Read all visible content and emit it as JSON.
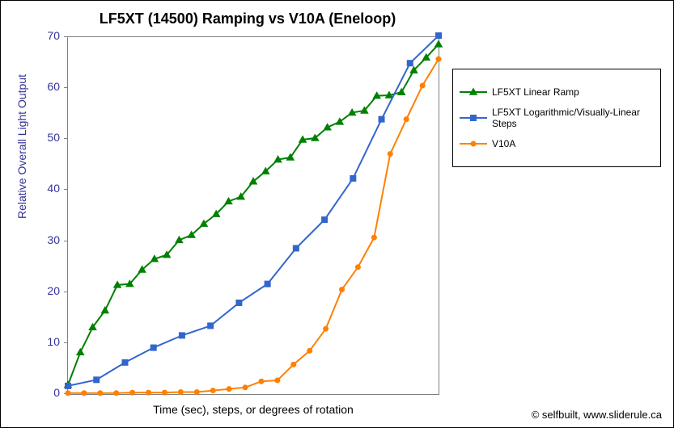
{
  "chart": {
    "type": "line",
    "title": "LF5XT (14500) Ramping vs V10A (Eneloop)",
    "title_fontsize": 18,
    "xlabel": "Time (sec), steps, or degrees of rotation",
    "ylabel": "Relative Overall Light Output",
    "label_fontsize": 14,
    "ylabel_color": "#333399",
    "ylim": [
      0,
      70
    ],
    "ytick_step": 10,
    "yticks": [
      0,
      10,
      20,
      30,
      40,
      50,
      60,
      70
    ],
    "background_color": "#ffffff",
    "grid_color": "#808080",
    "plot_border_color": "#808080",
    "x_index_max": 30,
    "attribution": "© selfbuilt, www.sliderule.ca",
    "legend": {
      "position": "right",
      "border_color": "#000000",
      "items": [
        {
          "label": "LF5XT Linear Ramp",
          "series_key": "lf5xt_linear"
        },
        {
          "label": "LF5XT Logarithmic/Visually-Linear Steps",
          "series_key": "lf5xt_log"
        },
        {
          "label": "V10A",
          "series_key": "v10a"
        }
      ]
    },
    "series": {
      "lf5xt_linear": {
        "label": "LF5XT Linear Ramp",
        "color": "#008000",
        "marker": "triangle",
        "marker_size": 8,
        "line_width": 2,
        "y": [
          1.8,
          8.2,
          13.1,
          16.4,
          21.4,
          21.6,
          24.4,
          26.5,
          27.3,
          30.2,
          31.2,
          33.4,
          35.3,
          37.8,
          38.7,
          41.7,
          43.7,
          46.0,
          46.4,
          49.9,
          50.2,
          52.3,
          53.4,
          55.2,
          55.6,
          58.5,
          58.6,
          59.2,
          63.5,
          66.0,
          68.6
        ]
      },
      "lf5xt_log": {
        "label": "LF5XT Logarithmic/Visually-Linear Steps",
        "color": "#3366cc",
        "marker": "square",
        "marker_size": 7,
        "line_width": 2,
        "y": [
          1.6,
          2.8,
          6.2,
          9.1,
          11.5,
          13.4,
          17.9,
          21.6,
          28.6,
          34.2,
          42.3,
          53.9,
          64.9,
          70.3
        ]
      },
      "v10a": {
        "label": "V10A",
        "color": "#ff8000",
        "marker": "circle",
        "marker_size": 6,
        "line_width": 2,
        "y": [
          0.2,
          0.2,
          0.2,
          0.2,
          0.3,
          0.3,
          0.3,
          0.4,
          0.4,
          0.7,
          1.0,
          1.3,
          2.5,
          2.7,
          5.8,
          8.5,
          12.8,
          20.5,
          24.9,
          30.7,
          47.1,
          53.9,
          60.5,
          65.7
        ]
      }
    }
  }
}
